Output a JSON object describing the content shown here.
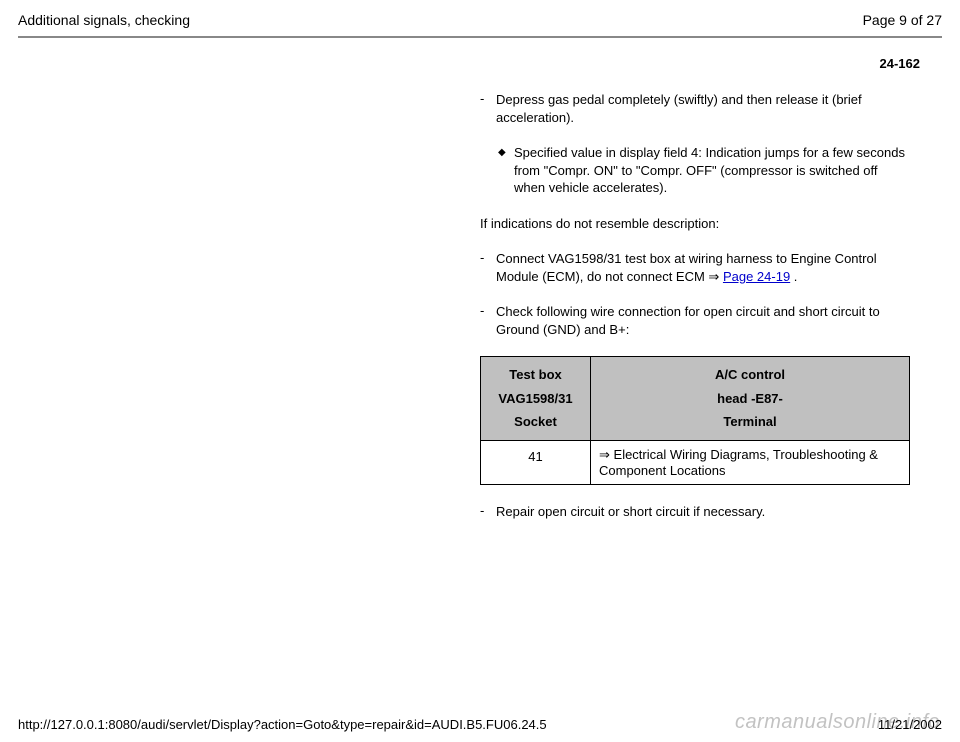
{
  "header": {
    "title": "Additional signals, checking",
    "page_indicator": "Page 9 of 27"
  },
  "page_number": "24-162",
  "steps": {
    "depress": "Depress gas pedal completely (swiftly) and then release it (brief acceleration).",
    "specified": "Specified value in display field 4: Indication jumps for a few seconds from \"Compr. ON\" to \"Compr. OFF\" (compressor is switched off when vehicle accelerates).",
    "if_not": "If indications do not resemble description:",
    "connect_pre": "Connect VAG1598/31 test box at wiring harness to Engine Control Module (ECM), do not connect ECM ",
    "connect_link": "Page 24-19",
    "connect_post": " .",
    "check": "Check following wire connection for open circuit and short circuit to Ground (GND) and B+:",
    "repair": "Repair open circuit or short circuit if necessary."
  },
  "table": {
    "col1_line1": "Test box",
    "col1_line2": "VAG1598/31",
    "col1_line3": "Socket",
    "col2_line1": "A/C control",
    "col2_line2": "head -E87-",
    "col2_line3": "Terminal",
    "row1_col1": "41",
    "row1_col2": " Electrical Wiring Diagrams, Troubleshooting & Component Locations"
  },
  "footer": {
    "url": "http://127.0.0.1:8080/audi/servlet/Display?action=Goto&type=repair&id=AUDI.B5.FU06.24.5",
    "date": "11/21/2002"
  },
  "watermark": "carmanualsonline.info",
  "symbols": {
    "dash": "-",
    "diamond": "◆",
    "arrow": "⇒"
  }
}
